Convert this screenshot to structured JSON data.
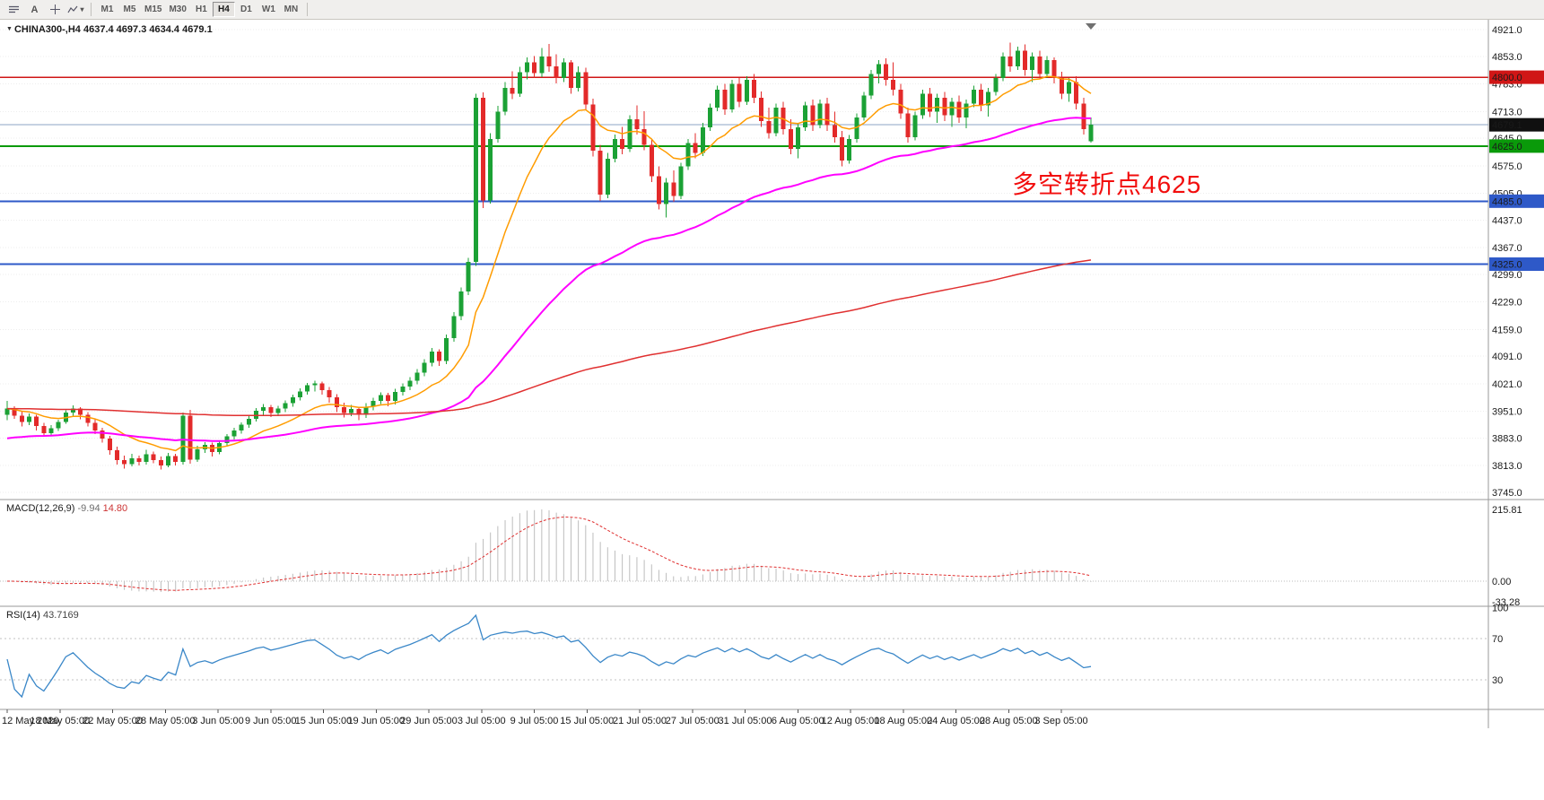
{
  "toolbar": {
    "tools": [
      {
        "name": "objects-list"
      },
      {
        "name": "text-tool",
        "glyph": "A"
      },
      {
        "name": "crosshair-tool"
      },
      {
        "name": "indicators-tool"
      }
    ],
    "timeframes": [
      "M1",
      "M5",
      "M15",
      "M30",
      "H1",
      "H4",
      "D1",
      "W1",
      "MN"
    ],
    "active_timeframe": "H4"
  },
  "chart": {
    "title_symbol": "CHINA300-,H4",
    "title_ohlc": "4637.4 4697.3 4634.4 4679.1",
    "annotation": {
      "text": "多空转折点4625",
      "color": "#f20d0d"
    }
  },
  "chart_data": {
    "type": "candlestick",
    "symbol": "CHINA300-",
    "period": "H4",
    "last_bar": {
      "open": 4637.4,
      "high": 4697.3,
      "low": 4634.4,
      "close": 4679.1
    },
    "colors": {
      "up": "#1ba135",
      "down": "#e32a2a",
      "background": "#ffffff"
    },
    "y_axis": {
      "range": [
        3745,
        4921
      ],
      "ticks": [
        "4921.0",
        "4853.0",
        "4783.0",
        "4713.0",
        "4645.0",
        "4575.0",
        "4505.0",
        "4437.0",
        "4367.0",
        "4299.0",
        "4229.0",
        "4159.0",
        "4091.0",
        "4021.0",
        "3951.0",
        "3883.0",
        "3813.0",
        "3745.0"
      ],
      "badges": [
        {
          "value": "4800.0",
          "color": "#d01616"
        },
        {
          "value": "4679.1",
          "color": "#101010"
        },
        {
          "value": "4625.0",
          "color": "#0a9a0a"
        },
        {
          "value": "4485.0",
          "color": "#2e59c8"
        },
        {
          "value": "4325.0",
          "color": "#2e59c8"
        }
      ]
    },
    "horizontal_lines": [
      {
        "price": 4800,
        "color": "#d01616",
        "width": 1.4
      },
      {
        "price": 4679.1,
        "color": "#8ca6c6",
        "width": 1
      },
      {
        "price": 4625,
        "color": "#0a9a0a",
        "width": 2
      },
      {
        "price": 4485,
        "color": "#2e59c8",
        "width": 2
      },
      {
        "price": 4325,
        "color": "#2e59c8",
        "width": 2
      }
    ],
    "moving_averages": [
      {
        "period": 14,
        "color": "#ff9c00",
        "width": 1.5,
        "seed": null
      },
      {
        "period": 60,
        "color": "#ff00ff",
        "width": 2,
        "seed": 3880
      },
      {
        "period": 250,
        "color": "#e03030",
        "width": 1.5,
        "seed": 3958
      }
    ],
    "x_axis": {
      "labels": [
        "12 May 2020",
        "18 May 05:00",
        "22 May 05:00",
        "28 May 05:00",
        "3 Jun 05:00",
        "9 Jun 05:00",
        "15 Jun 05:00",
        "19 Jun 05:00",
        "29 Jun 05:00",
        "3 Jul 05:00",
        "9 Jul 05:00",
        "15 Jul 05:00",
        "21 Jul 05:00",
        "27 Jul 05:00",
        "31 Jul 05:00",
        "6 Aug 05:00",
        "12 Aug 05:00",
        "18 Aug 05:00",
        "24 Aug 05:00",
        "28 Aug 05:00",
        "3 Sep 05:00"
      ]
    },
    "indicators": [
      {
        "type": "MACD",
        "name": "MACD(12,26,9)",
        "value_main": "-9.94",
        "value_signal": "14.80",
        "params": [
          12,
          26,
          9
        ],
        "scale_labels": [
          "215.81",
          "0.00",
          "-33.28"
        ],
        "colors": {
          "histogram": "#bdbdbd",
          "signal": "#e03030"
        }
      },
      {
        "type": "RSI",
        "name": "RSI(14)",
        "value": "43.7169",
        "period": 14,
        "levels": [
          70,
          30
        ],
        "scale_labels": [
          "100",
          "70",
          "30"
        ],
        "color": "#3a87c8"
      }
    ],
    "ohlc": [
      [
        3942,
        3978,
        3928,
        3958
      ],
      [
        3958,
        3964,
        3932,
        3940
      ],
      [
        3940,
        3950,
        3912,
        3924
      ],
      [
        3924,
        3946,
        3916,
        3938
      ],
      [
        3938,
        3942,
        3902,
        3914
      ],
      [
        3914,
        3922,
        3886,
        3896
      ],
      [
        3896,
        3916,
        3889,
        3908
      ],
      [
        3908,
        3930,
        3901,
        3924
      ],
      [
        3924,
        3954,
        3919,
        3948
      ],
      [
        3948,
        3966,
        3940,
        3958
      ],
      [
        3958,
        3962,
        3931,
        3942
      ],
      [
        3942,
        3949,
        3913,
        3922
      ],
      [
        3922,
        3931,
        3893,
        3902
      ],
      [
        3902,
        3909,
        3871,
        3882
      ],
      [
        3882,
        3889,
        3841,
        3852
      ],
      [
        3852,
        3861,
        3816,
        3827
      ],
      [
        3827,
        3839,
        3806,
        3817
      ],
      [
        3817,
        3843,
        3811,
        3832
      ],
      [
        3832,
        3839,
        3813,
        3822
      ],
      [
        3822,
        3853,
        3816,
        3842
      ],
      [
        3842,
        3849,
        3819,
        3827
      ],
      [
        3827,
        3836,
        3803,
        3814
      ],
      [
        3814,
        3845,
        3809,
        3837
      ],
      [
        3837,
        3843,
        3813,
        3822
      ],
      [
        3822,
        3948,
        3816,
        3940
      ],
      [
        3940,
        3955,
        3818,
        3828
      ],
      [
        3828,
        3864,
        3822,
        3855
      ],
      [
        3855,
        3873,
        3845,
        3866
      ],
      [
        3866,
        3872,
        3836,
        3848
      ],
      [
        3848,
        3877,
        3842,
        3870
      ],
      [
        3870,
        3893,
        3861,
        3887
      ],
      [
        3887,
        3909,
        3879,
        3902
      ],
      [
        3902,
        3923,
        3894,
        3917
      ],
      [
        3917,
        3939,
        3909,
        3932
      ],
      [
        3932,
        3959,
        3925,
        3952
      ],
      [
        3952,
        3969,
        3941,
        3962
      ],
      [
        3962,
        3967,
        3937,
        3947
      ],
      [
        3947,
        3965,
        3939,
        3958
      ],
      [
        3958,
        3979,
        3949,
        3972
      ],
      [
        3972,
        3993,
        3963,
        3987
      ],
      [
        3987,
        4009,
        3979,
        4002
      ],
      [
        4002,
        4023,
        3993,
        4017
      ],
      [
        4017,
        4029,
        4001,
        4022
      ],
      [
        4022,
        4027,
        3993,
        4005
      ],
      [
        4005,
        4013,
        3973,
        3987
      ],
      [
        3987,
        3995,
        3949,
        3962
      ],
      [
        3962,
        3973,
        3935,
        3947
      ],
      [
        3947,
        3967,
        3939,
        3957
      ],
      [
        3957,
        3963,
        3929,
        3942
      ],
      [
        3942,
        3972,
        3934,
        3963
      ],
      [
        3963,
        3986,
        3954,
        3978
      ],
      [
        3978,
        3999,
        3969,
        3992
      ],
      [
        3992,
        3998,
        3964,
        3977
      ],
      [
        3977,
        4008,
        3968,
        4000
      ],
      [
        4000,
        4022,
        3991,
        4014
      ],
      [
        4014,
        4038,
        4005,
        4029
      ],
      [
        4029,
        4058,
        4020,
        4049
      ],
      [
        4049,
        4083,
        4040,
        4074
      ],
      [
        4074,
        4112,
        4065,
        4103
      ],
      [
        4103,
        4109,
        4066,
        4079
      ],
      [
        4079,
        4146,
        4071,
        4137
      ],
      [
        4137,
        4203,
        4128,
        4193
      ],
      [
        4193,
        4266,
        4183,
        4256
      ],
      [
        4256,
        4341,
        4246,
        4331
      ],
      [
        4331,
        4758,
        4321,
        4748
      ],
      [
        4748,
        4762,
        4468,
        4487
      ],
      [
        4487,
        4658,
        4479,
        4643
      ],
      [
        4643,
        4727,
        4634,
        4712
      ],
      [
        4712,
        4788,
        4703,
        4773
      ],
      [
        4773,
        4815,
        4744,
        4758
      ],
      [
        4758,
        4826,
        4750,
        4813
      ],
      [
        4813,
        4850,
        4794,
        4838
      ],
      [
        4838,
        4854,
        4798,
        4810
      ],
      [
        4810,
        4874,
        4800,
        4853
      ],
      [
        4853,
        4884,
        4814,
        4828
      ],
      [
        4828,
        4858,
        4784,
        4798
      ],
      [
        4798,
        4848,
        4788,
        4838
      ],
      [
        4838,
        4844,
        4758,
        4773
      ],
      [
        4773,
        4828,
        4764,
        4813
      ],
      [
        4813,
        4824,
        4716,
        4731
      ],
      [
        4731,
        4746,
        4598,
        4613
      ],
      [
        4613,
        4628,
        4486,
        4502
      ],
      [
        4502,
        4608,
        4493,
        4593
      ],
      [
        4593,
        4654,
        4584,
        4643
      ],
      [
        4643,
        4674,
        4604,
        4618
      ],
      [
        4618,
        4703,
        4610,
        4693
      ],
      [
        4693,
        4728,
        4654,
        4668
      ],
      [
        4668,
        4714,
        4614,
        4628
      ],
      [
        4628,
        4643,
        4534,
        4548
      ],
      [
        4548,
        4573,
        4464,
        4478
      ],
      [
        4478,
        4544,
        4444,
        4533
      ],
      [
        4533,
        4563,
        4484,
        4498
      ],
      [
        4498,
        4583,
        4490,
        4573
      ],
      [
        4573,
        4643,
        4564,
        4633
      ],
      [
        4633,
        4658,
        4594,
        4608
      ],
      [
        4608,
        4684,
        4600,
        4673
      ],
      [
        4673,
        4733,
        4664,
        4723
      ],
      [
        4723,
        4778,
        4714,
        4768
      ],
      [
        4768,
        4783,
        4704,
        4718
      ],
      [
        4718,
        4793,
        4710,
        4783
      ],
      [
        4783,
        4798,
        4724,
        4738
      ],
      [
        4738,
        4803,
        4730,
        4793
      ],
      [
        4793,
        4808,
        4734,
        4748
      ],
      [
        4748,
        4764,
        4674,
        4688
      ],
      [
        4688,
        4723,
        4644,
        4658
      ],
      [
        4658,
        4733,
        4650,
        4723
      ],
      [
        4723,
        4738,
        4654,
        4668
      ],
      [
        4668,
        4693,
        4604,
        4618
      ],
      [
        4618,
        4683,
        4594,
        4673
      ],
      [
        4673,
        4738,
        4664,
        4728
      ],
      [
        4728,
        4743,
        4664,
        4678
      ],
      [
        4678,
        4743,
        4670,
        4733
      ],
      [
        4733,
        4748,
        4664,
        4678
      ],
      [
        4678,
        4713,
        4634,
        4648
      ],
      [
        4648,
        4663,
        4574,
        4588
      ],
      [
        4588,
        4653,
        4580,
        4643
      ],
      [
        4643,
        4708,
        4634,
        4698
      ],
      [
        4698,
        4763,
        4690,
        4753
      ],
      [
        4753,
        4818,
        4744,
        4808
      ],
      [
        4808,
        4843,
        4784,
        4833
      ],
      [
        4833,
        4848,
        4779,
        4793
      ],
      [
        4793,
        4838,
        4754,
        4768
      ],
      [
        4768,
        4783,
        4694,
        4708
      ],
      [
        4708,
        4723,
        4634,
        4648
      ],
      [
        4648,
        4713,
        4640,
        4703
      ],
      [
        4703,
        4768,
        4694,
        4758
      ],
      [
        4758,
        4773,
        4699,
        4713
      ],
      [
        4713,
        4758,
        4684,
        4748
      ],
      [
        4748,
        4763,
        4689,
        4703
      ],
      [
        4703,
        4748,
        4674,
        4738
      ],
      [
        4738,
        4753,
        4684,
        4698
      ],
      [
        4698,
        4743,
        4670,
        4733
      ],
      [
        4733,
        4778,
        4724,
        4768
      ],
      [
        4768,
        4783,
        4714,
        4728
      ],
      [
        4728,
        4773,
        4700,
        4763
      ],
      [
        4763,
        4808,
        4754,
        4798
      ],
      [
        4798,
        4863,
        4790,
        4853
      ],
      [
        4853,
        4888,
        4814,
        4828
      ],
      [
        4828,
        4878,
        4818,
        4868
      ],
      [
        4868,
        4883,
        4804,
        4818
      ],
      [
        4818,
        4863,
        4788,
        4853
      ],
      [
        4853,
        4868,
        4794,
        4808
      ],
      [
        4808,
        4854,
        4798,
        4843
      ],
      [
        4843,
        4850,
        4784,
        4798
      ],
      [
        4798,
        4814,
        4744,
        4758
      ],
      [
        4758,
        4798,
        4738,
        4788
      ],
      [
        4788,
        4803,
        4718,
        4733
      ],
      [
        4733,
        4748,
        4654,
        4668
      ],
      [
        4637.4,
        4697.3,
        4634.4,
        4679.1
      ]
    ]
  }
}
